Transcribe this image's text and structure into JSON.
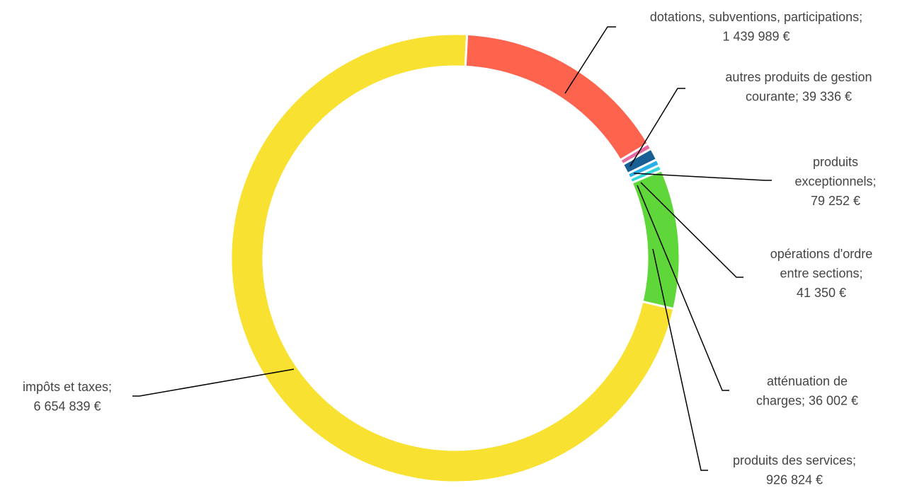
{
  "chart_data": {
    "type": "donut",
    "labels": [
      [
        "dotations, subventions, participations;",
        "1 439 989 €"
      ],
      [
        "autres produits de gestion",
        "courante; 39 336 €"
      ],
      [
        "produits",
        "exceptionnels;",
        "79 252 €"
      ],
      [
        "opérations d'ordre",
        "entre sections;",
        "41 350 €"
      ],
      [
        "atténuation de",
        "charges; 36 002 €"
      ],
      [
        "produits des services;",
        "926 824 €"
      ],
      [
        "impôts et taxes;",
        "6 654 839 €"
      ]
    ],
    "values": [
      1439989,
      39336,
      79252,
      41350,
      36002,
      926824,
      6654839
    ],
    "colors": [
      "#fe634d",
      "#e9679f",
      "#1a5f94",
      "#29aee6",
      "#34d6d6",
      "#5fd63a",
      "#f8e131"
    ]
  }
}
